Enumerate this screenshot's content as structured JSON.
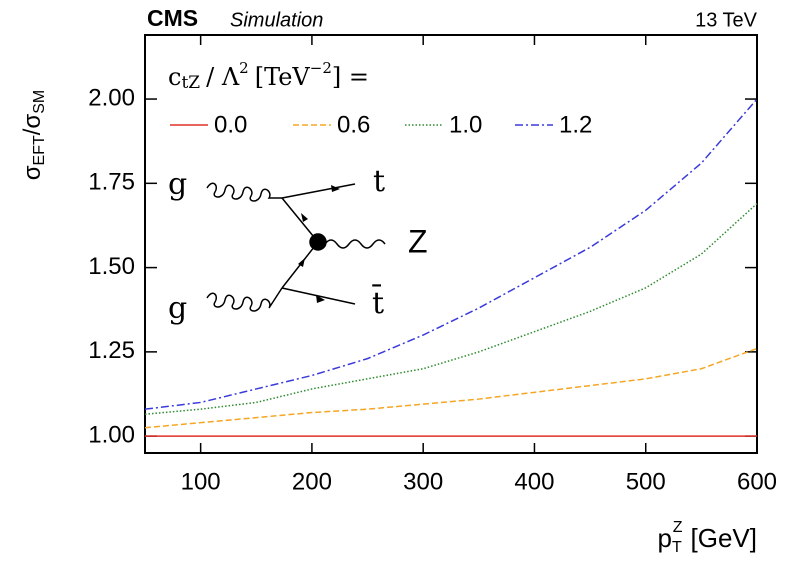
{
  "chart_data": {
    "type": "line",
    "experiment": "CMS",
    "status": "Simulation",
    "energy": "13 TeV",
    "y_label": [
      "σ",
      "EFT",
      "/",
      "σ",
      "SM"
    ],
    "x_label": [
      "p",
      "T",
      "Z",
      "[GeV]"
    ],
    "legend_title": [
      "c",
      "tZ",
      "/ Λ",
      "2",
      "[TeV",
      "−2",
      "] ="
    ],
    "diagram_labels": [
      "g",
      "g",
      "t",
      "Z",
      "t̄"
    ],
    "x": [
      50,
      100,
      150,
      200,
      250,
      300,
      350,
      400,
      450,
      500,
      550,
      600
    ],
    "series": [
      {
        "name": "0.0",
        "color": "#e0302a",
        "dash": "none",
        "values": [
          1.0,
          1.0,
          1.0,
          1.0,
          1.0,
          1.0,
          1.0,
          1.0,
          1.0,
          1.0,
          1.0,
          1.0
        ]
      },
      {
        "name": "0.6",
        "color": "#f5a623",
        "dash": "6 3",
        "values": [
          1.025,
          1.04,
          1.055,
          1.07,
          1.08,
          1.095,
          1.11,
          1.13,
          1.15,
          1.17,
          1.2,
          1.26
        ]
      },
      {
        "name": "1.0",
        "color": "#2e8b2e",
        "dash": "1.5 2",
        "values": [
          1.065,
          1.08,
          1.1,
          1.14,
          1.17,
          1.2,
          1.25,
          1.31,
          1.37,
          1.44,
          1.54,
          1.69
        ]
      },
      {
        "name": "1.2",
        "color": "#3a3adb",
        "dash": "8 3 2 3",
        "values": [
          1.08,
          1.1,
          1.14,
          1.18,
          1.23,
          1.3,
          1.38,
          1.47,
          1.56,
          1.67,
          1.81,
          2.0
        ]
      }
    ],
    "xlim": [
      50,
      600
    ],
    "ylim": [
      0.95,
      2.19
    ],
    "xticks": [
      100,
      200,
      300,
      400,
      500,
      600
    ],
    "yticks": [
      {
        "value": 1.0,
        "label": "1.00"
      },
      {
        "value": 1.25,
        "label": "1.25"
      },
      {
        "value": 1.5,
        "label": "1.50"
      },
      {
        "value": 1.75,
        "label": "1.75"
      },
      {
        "value": 2.0,
        "label": "2.00"
      }
    ]
  }
}
